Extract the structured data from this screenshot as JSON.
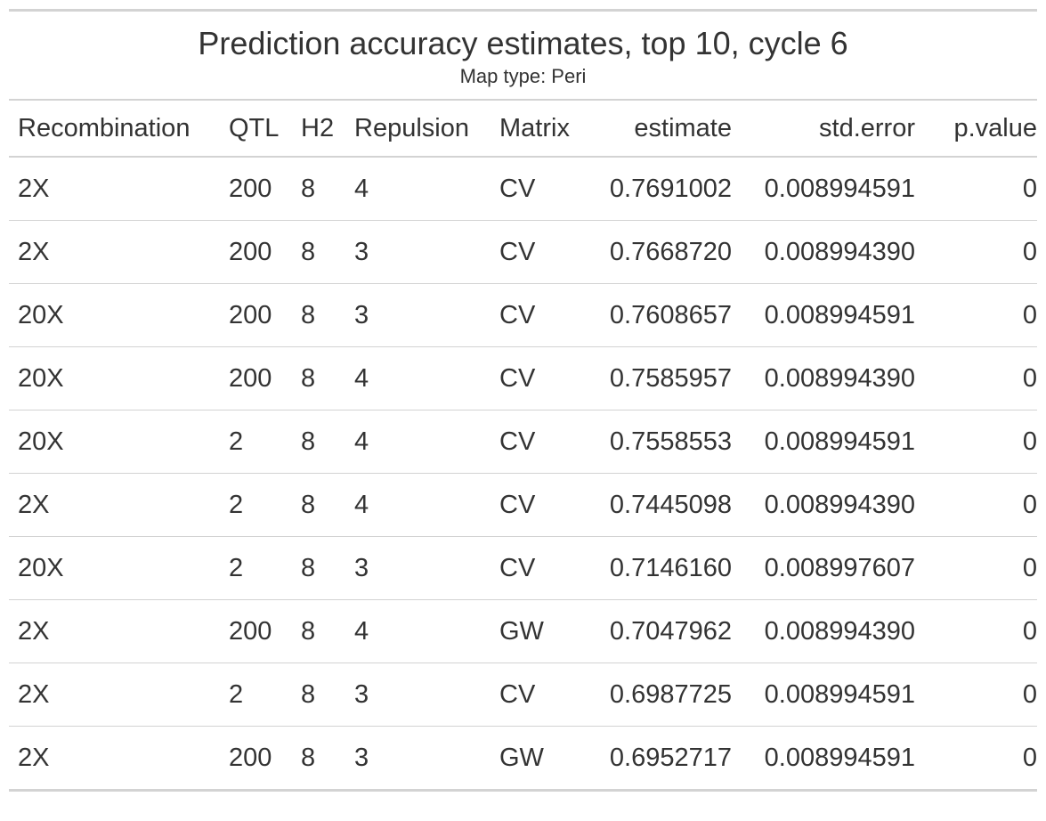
{
  "title": "Prediction accuracy estimates, top 10, cycle 6",
  "subtitle": "Map type: Peri",
  "columns": [
    "Recombination",
    "QTL",
    "H2",
    "Repulsion",
    "Matrix",
    "estimate",
    "std.error",
    "p.value"
  ],
  "rows": [
    [
      "2X",
      "200",
      "8",
      "4",
      "CV",
      "0.7691002",
      "0.008994591",
      "0"
    ],
    [
      "2X",
      "200",
      "8",
      "3",
      "CV",
      "0.7668720",
      "0.008994390",
      "0"
    ],
    [
      "20X",
      "200",
      "8",
      "3",
      "CV",
      "0.7608657",
      "0.008994591",
      "0"
    ],
    [
      "20X",
      "200",
      "8",
      "4",
      "CV",
      "0.7585957",
      "0.008994390",
      "0"
    ],
    [
      "20X",
      "2",
      "8",
      "4",
      "CV",
      "0.7558553",
      "0.008994591",
      "0"
    ],
    [
      "2X",
      "2",
      "8",
      "4",
      "CV",
      "0.7445098",
      "0.008994390",
      "0"
    ],
    [
      "20X",
      "2",
      "8",
      "3",
      "CV",
      "0.7146160",
      "0.008997607",
      "0"
    ],
    [
      "2X",
      "200",
      "8",
      "4",
      "GW",
      "0.7047962",
      "0.008994390",
      "0"
    ],
    [
      "2X",
      "2",
      "8",
      "3",
      "CV",
      "0.6987725",
      "0.008994591",
      "0"
    ],
    [
      "2X",
      "200",
      "8",
      "3",
      "GW",
      "0.6952717",
      "0.008994591",
      "0"
    ]
  ]
}
